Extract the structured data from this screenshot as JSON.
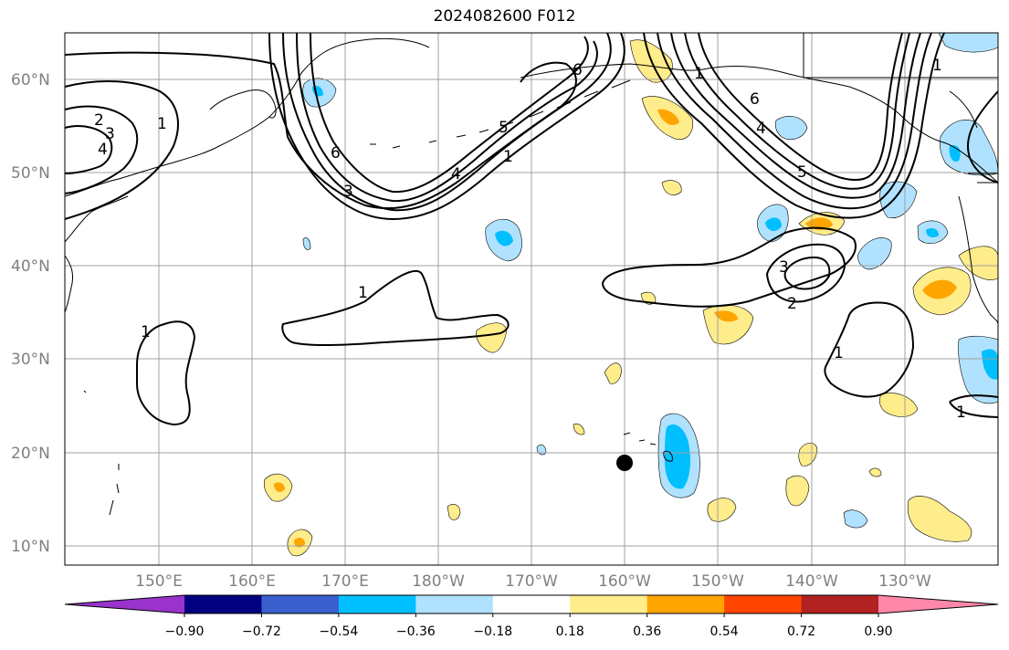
{
  "title": "2024082600 F012",
  "map": {
    "lat_labels": [
      "60°N",
      "50°N",
      "40°N",
      "30°N",
      "20°N",
      "10°N"
    ],
    "lon_labels": [
      "150°E",
      "160°E",
      "170°E",
      "180°W",
      "170°W",
      "160°W",
      "150°W",
      "140°W",
      "130°W"
    ],
    "contour_labels": [
      "1",
      "2",
      "3",
      "4",
      "5",
      "6"
    ],
    "gridline_color": "#a0a0a0",
    "marker": "filled-circle"
  },
  "colorbar": {
    "tick_labels": [
      "−0.90",
      "−0.72",
      "−0.54",
      "−0.36",
      "−0.18",
      "0.18",
      "0.36",
      "0.54",
      "0.72",
      "0.90"
    ],
    "colors": [
      "#9933cc",
      "#000080",
      "#3a5fcd",
      "#00bfff",
      "#b0e2ff",
      "#ffffff",
      "#ffec8b",
      "#ffa500",
      "#ff4500",
      "#b22222",
      "#ff88aa"
    ],
    "extend": "both"
  }
}
